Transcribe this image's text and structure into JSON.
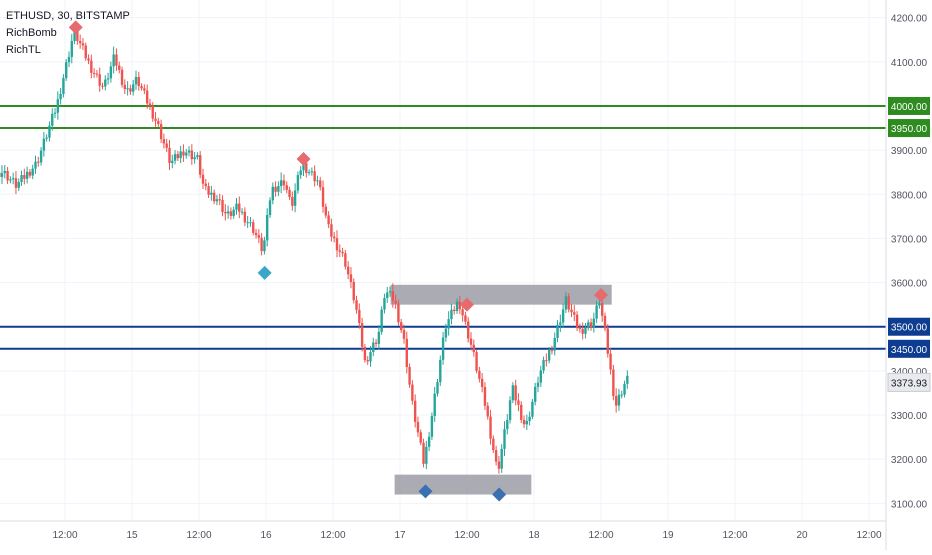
{
  "legend": {
    "symbol_line": "ETHUSD, 30, BITSTAMP",
    "indicator_1": "RichBomb",
    "indicator_2": "RichTL"
  },
  "chart_data": {
    "type": "candlestick",
    "ylim": [
      3060,
      4240
    ],
    "y_ticks": [
      "3100.00",
      "3200.00",
      "3300.00",
      "3400.00",
      "3600.00",
      "3700.00",
      "3800.00",
      "3900.00",
      "4100.00",
      "4200.00"
    ],
    "y_tick_values": [
      3100,
      3200,
      3300,
      3400,
      3600,
      3700,
      3800,
      3900,
      4100,
      4200
    ],
    "x_ticks": [
      "12:00",
      "15",
      "12:00",
      "16",
      "12:00",
      "17",
      "12:00",
      "18",
      "12:00",
      "19",
      "12:00",
      "20",
      "12:00"
    ],
    "x_tick_index": [
      0.5,
      1,
      1.5,
      2,
      2.5,
      3,
      3.5,
      4,
      4.5,
      5,
      5.5,
      6,
      6.5
    ],
    "horizontal_lines": [
      {
        "label": "4000.00",
        "value": 4000,
        "color": "#2e8b1f"
      },
      {
        "label": "3950.00",
        "value": 3950,
        "color": "#2e8b1f"
      },
      {
        "label": "3500.00",
        "value": 3500,
        "color": "#0d3c91"
      },
      {
        "label": "3450.00",
        "value": 3450,
        "color": "#0d3c91"
      }
    ],
    "last_price": {
      "label": "3373.93",
      "value": 3373.93
    },
    "zones": [
      {
        "x0": 2.93,
        "x1": 4.58,
        "y0": 3550,
        "y1": 3595
      },
      {
        "x0": 2.96,
        "x1": 3.98,
        "y0": 3120,
        "y1": 3165
      }
    ],
    "markers": [
      {
        "x": 0.58,
        "y": 4178,
        "kind": "sell"
      },
      {
        "x": 2.28,
        "y": 3880,
        "kind": "sell"
      },
      {
        "x": 1.99,
        "y": 3622,
        "kind": "buy"
      },
      {
        "x": 3.19,
        "y": 3127,
        "kind": "buy"
      },
      {
        "x": 3.5,
        "y": 3550,
        "kind": "sell"
      },
      {
        "x": 3.74,
        "y": 3120,
        "kind": "buy"
      },
      {
        "x": 4.5,
        "y": 3572,
        "kind": "sell"
      }
    ],
    "path_x": [
      0.05,
      0.15,
      0.3,
      0.45,
      0.58,
      0.7,
      0.8,
      0.88,
      0.97,
      1.05,
      1.2,
      1.3,
      1.4,
      1.5,
      1.55,
      1.65,
      1.72,
      1.8,
      1.92,
      1.99,
      2.05,
      2.15,
      2.2,
      2.28,
      2.4,
      2.48,
      2.6,
      2.68,
      2.75,
      2.85,
      2.9,
      2.97,
      3.04,
      3.1,
      3.19,
      3.25,
      3.35,
      3.45,
      3.55,
      3.65,
      3.74,
      3.85,
      3.95,
      4.05,
      4.15,
      4.25,
      4.35,
      4.45,
      4.5,
      4.55,
      4.62,
      4.7
    ],
    "path_y": [
      3850,
      3820,
      3870,
      4000,
      4170,
      4090,
      4040,
      4110,
      4030,
      4060,
      3960,
      3870,
      3900,
      3880,
      3810,
      3790,
      3750,
      3770,
      3720,
      3670,
      3810,
      3830,
      3770,
      3870,
      3830,
      3720,
      3650,
      3550,
      3420,
      3480,
      3580,
      3560,
      3470,
      3330,
      3190,
      3300,
      3500,
      3560,
      3450,
      3320,
      3170,
      3360,
      3270,
      3390,
      3460,
      3560,
      3490,
      3510,
      3560,
      3470,
      3320,
      3380
    ],
    "wick_noise": [
      12,
      20,
      15,
      10,
      8,
      14,
      18,
      9,
      11,
      16,
      13,
      7,
      10,
      15,
      12,
      9,
      17,
      8,
      11,
      14
    ]
  }
}
